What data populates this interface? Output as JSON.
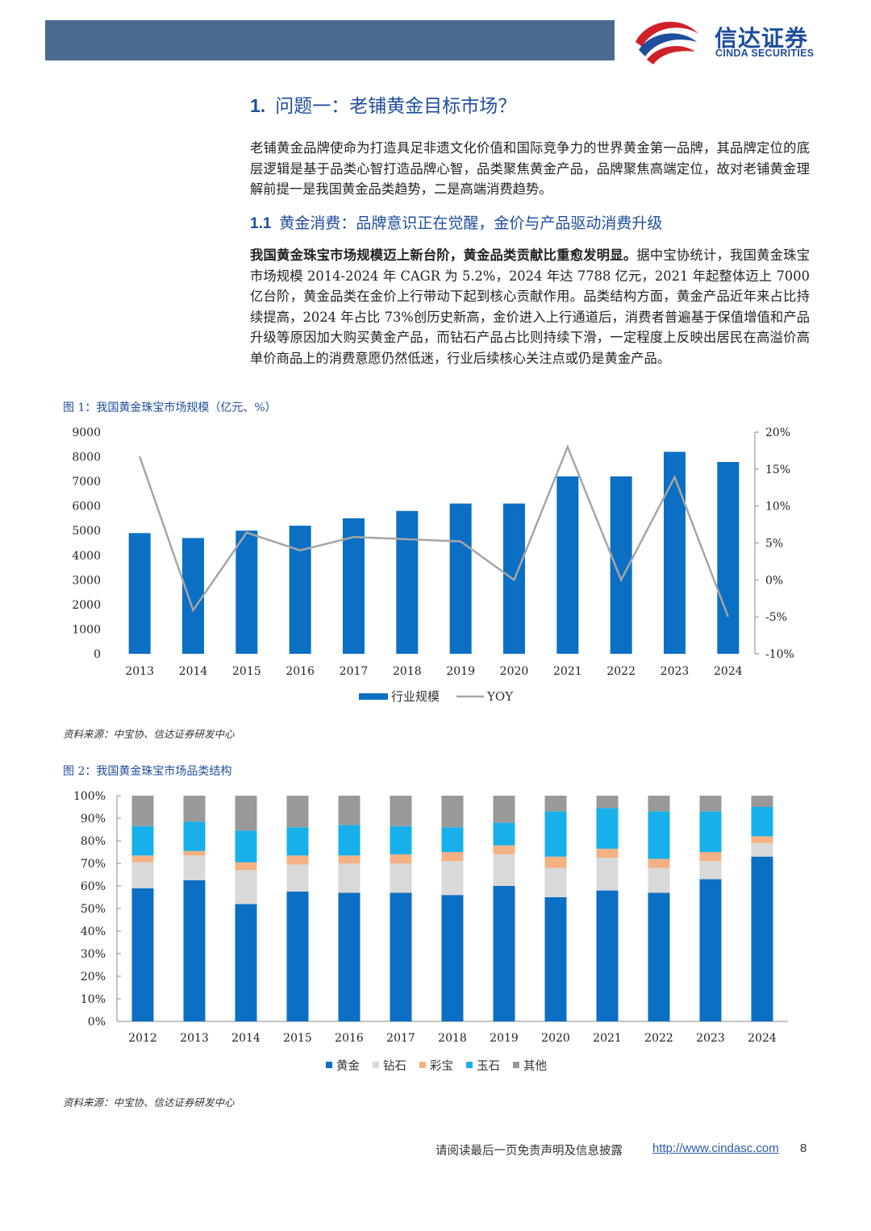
{
  "header": {
    "logo_cn": "信达证券",
    "logo_en": "CINDA SECURITIES"
  },
  "section": {
    "number": "1.",
    "title": "问题一：老铺黄金目标市场？",
    "intro": "老铺黄金品牌使命为打造具足非遗文化价值和国际竞争力的世界黄金第一品牌，其品牌定位的底层逻辑是基于品类心智打造品牌心智，品类聚焦黄金产品，品牌聚焦高端定位，故对老铺黄金理解前提一是我国黄金品类趋势，二是高端消费趋势。"
  },
  "subsection": {
    "number": "1.1",
    "title": "黄金消费：品牌意识正在觉醒，金价与产品驱动消费升级",
    "lead_bold": "我国黄金珠宝市场规模迈上新台阶，黄金品类贡献比重愈发明显。",
    "body": "据中宝协统计，我国黄金珠宝市场规模 2014-2024 年 CAGR 为 5.2%，2024 年达 7788 亿元，2021 年起整体迈上 7000 亿台阶，黄金品类在金价上行带动下起到核心贡献作用。品类结构方面，黄金产品近年来占比持续提高，2024 年占比 73%创历史新高，金价进入上行通道后，消费者普遍基于保值增值和产品升级等原因加大购买黄金产品，而钻石产品占比则持续下滑，一定程度上反映出居民在高溢价高单价商品上的消费意愿仍然低迷，行业后续核心关注点或仍是黄金产品。"
  },
  "figure1": {
    "title": "图 1：我国黄金珠宝市场规模（亿元、%）",
    "source": "资料来源：中宝协、信达证券研发中心"
  },
  "figure2": {
    "title": "图 2：我国黄金珠宝市场品类结构",
    "source": "资料来源：中宝协、信达证券研发中心"
  },
  "chart_data": [
    {
      "type": "bar",
      "title": "我国黄金珠宝市场规模（亿元、%）",
      "categories": [
        "2013",
        "2014",
        "2015",
        "2016",
        "2017",
        "2018",
        "2019",
        "2020",
        "2021",
        "2022",
        "2023",
        "2024"
      ],
      "series": [
        {
          "name": "行业规模",
          "type": "bar",
          "axis": "left",
          "color": "#0b6fc4",
          "values": [
            4900,
            4700,
            5000,
            5200,
            5500,
            5800,
            6100,
            6100,
            7200,
            7200,
            8200,
            7788
          ]
        },
        {
          "name": "YOY",
          "type": "line",
          "axis": "right",
          "color": "#a6a6a6",
          "values": [
            0.167,
            -0.041,
            0.064,
            0.04,
            0.058,
            0.055,
            0.052,
            0.0,
            0.18,
            0.0,
            0.139,
            -0.05
          ]
        }
      ],
      "ylim_left": [
        0,
        9000
      ],
      "ylim_right": [
        -0.1,
        0.2
      ],
      "yticks_left": [
        "0",
        "1000",
        "2000",
        "3000",
        "4000",
        "5000",
        "6000",
        "7000",
        "8000",
        "9000"
      ],
      "yticks_right": [
        "-10%",
        "-5%",
        "0%",
        "5%",
        "10%",
        "15%",
        "20%"
      ],
      "legend": "bottom"
    },
    {
      "type": "bar",
      "stacked": true,
      "title": "我国黄金珠宝市场品类结构",
      "categories": [
        "2012",
        "2013",
        "2014",
        "2015",
        "2016",
        "2017",
        "2018",
        "2019",
        "2020",
        "2021",
        "2022",
        "2023",
        "2024"
      ],
      "series": [
        {
          "name": "黄金",
          "color": "#0b6fc4",
          "values": [
            59,
            62.5,
            52,
            57.5,
            57,
            57,
            56,
            60,
            55,
            58,
            57,
            63,
            73
          ]
        },
        {
          "name": "钻石",
          "color": "#d9d9d9",
          "values": [
            11.5,
            11,
            15,
            12,
            13,
            13,
            15,
            14,
            13,
            14.5,
            11,
            8,
            6
          ]
        },
        {
          "name": "彩宝",
          "color": "#f4b183",
          "values": [
            3,
            2,
            3.5,
            4,
            3.5,
            4,
            4,
            4,
            5,
            4,
            4,
            4,
            3
          ]
        },
        {
          "name": "玉石",
          "color": "#17b0ea",
          "values": [
            13,
            13,
            14,
            12.5,
            13.5,
            12.5,
            11,
            10,
            20,
            18,
            21,
            18,
            13
          ]
        },
        {
          "name": "其他",
          "color": "#999999",
          "values": [
            13.5,
            11.5,
            15.5,
            14,
            13,
            13.5,
            14,
            12,
            7,
            5.5,
            7,
            7,
            5
          ]
        }
      ],
      "ylim": [
        0,
        100
      ],
      "yticks": [
        "0%",
        "10%",
        "20%",
        "30%",
        "40%",
        "50%",
        "60%",
        "70%",
        "80%",
        "90%",
        "100%"
      ],
      "legend": "bottom"
    }
  ],
  "footer": {
    "disclaimer": "请阅读最后一页免责声明及信息披露",
    "link": "http://www.cindasc.com",
    "page": "8"
  }
}
